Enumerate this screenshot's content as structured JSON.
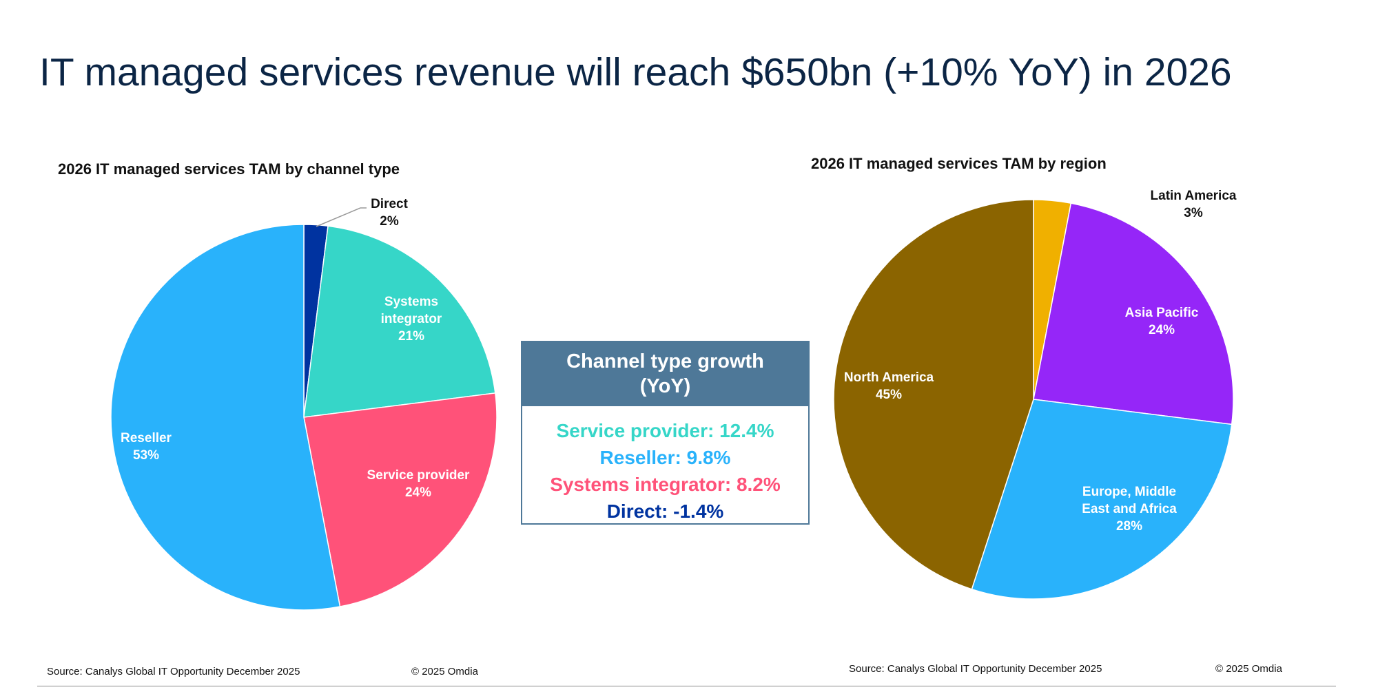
{
  "title": "IT managed services revenue will reach $650bn (+10% YoY) in 2026",
  "chart_data": [
    {
      "type": "pie",
      "title": "2026 IT managed services TAM by channel type",
      "categories": [
        "Direct",
        "Systems integrator",
        "Service provider",
        "Reseller"
      ],
      "values": [
        2,
        21,
        24,
        53
      ],
      "labels": [
        [
          "Direct",
          "2%"
        ],
        [
          "Systems",
          "integrator",
          "21%"
        ],
        [
          "Service provider",
          "24%"
        ],
        [
          "Reseller",
          "53%"
        ]
      ],
      "colors": [
        "#0033a0",
        "#36d6c8",
        "#ff5279",
        "#29b2fb"
      ],
      "start_angle": "top, clockwise"
    },
    {
      "type": "pie",
      "title": "2026 IT managed services TAM by region",
      "categories": [
        "Latin America",
        "Asia Pacific",
        "Europe, Middle East and Africa",
        "North America"
      ],
      "values": [
        3,
        24,
        28,
        45
      ],
      "labels": [
        [
          "Latin America",
          "3%"
        ],
        [
          "Asia Pacific",
          "24%"
        ],
        [
          "Europe, Middle",
          "East and Africa",
          "28%"
        ],
        [
          "North America",
          "45%"
        ]
      ],
      "colors": [
        "#f0b000",
        "#9526f8",
        "#29b2fb",
        "#8b6400"
      ],
      "start_angle": "top, clockwise"
    }
  ],
  "growth_box": {
    "title_line1": "Channel type growth",
    "title_line2": "(YoY)",
    "header_color": "#4e7898",
    "items": [
      {
        "text": "Service provider: 12.4%",
        "color": "#36d6c8"
      },
      {
        "text": "Reseller: 9.8%",
        "color": "#29b2fb"
      },
      {
        "text": "Systems integrator: 8.2%",
        "color": "#ff5279"
      },
      {
        "text": "Direct: -1.4%",
        "color": "#0033a0"
      }
    ]
  },
  "footer": {
    "left_source": "Source: Canalys Global IT Opportunity December 2025",
    "left_copyright": "© 2025 Omdia",
    "right_source": "Source: Canalys Global IT Opportunity December 2025",
    "right_copyright": "© 2025 Omdia"
  }
}
